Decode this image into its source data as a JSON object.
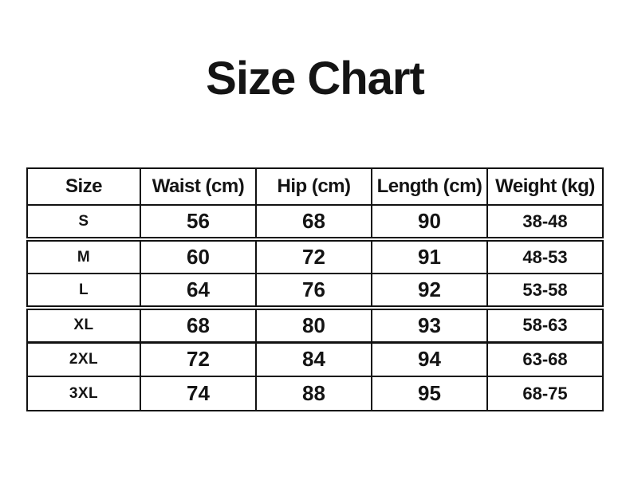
{
  "title": "Size Chart",
  "colors": {
    "text": "#141414",
    "border": "#111111",
    "background": "#ffffff"
  },
  "chart_data": {
    "type": "table",
    "title": "Size Chart",
    "columns": [
      "Size",
      "Waist (cm)",
      "Hip (cm)",
      "Length (cm)",
      "Weight (kg)"
    ],
    "rows": [
      [
        "S",
        "56",
        "68",
        "90",
        "38-48"
      ],
      [
        "M",
        "60",
        "72",
        "91",
        "48-53"
      ],
      [
        "L",
        "64",
        "76",
        "92",
        "53-58"
      ],
      [
        "XL",
        "68",
        "80",
        "93",
        "58-63"
      ],
      [
        "2XL",
        "72",
        "84",
        "94",
        "63-68"
      ],
      [
        "3XL",
        "74",
        "88",
        "95",
        "68-75"
      ]
    ]
  }
}
